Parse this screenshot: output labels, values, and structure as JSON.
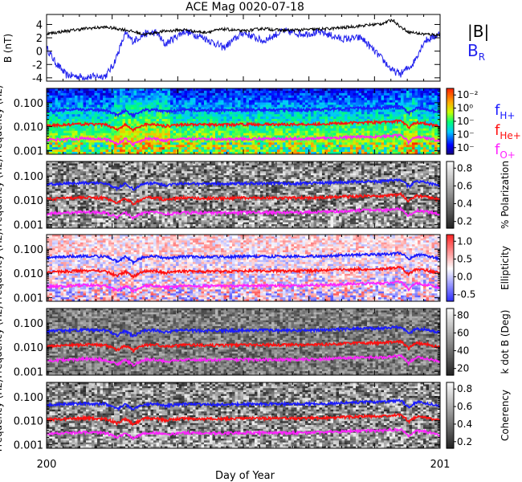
{
  "title": "ACE Mag 0020-07-18",
  "xaxis": {
    "label": "Day of Year",
    "start": 200,
    "end": 201,
    "tick_labels": [
      "200",
      "201"
    ]
  },
  "colors": {
    "total": "#000000",
    "br": "#2222ee",
    "fH": "#1a1aff",
    "fHe": "#ff1010",
    "fO": "#ff22ff"
  },
  "chart_data": [
    {
      "type": "line",
      "ylabel": "B (nT)",
      "ylim": [
        -4.5,
        5.5
      ],
      "yticks": [
        4,
        2,
        0,
        -2,
        -4
      ],
      "series": [
        {
          "name": "|B|",
          "color": "#000000",
          "x": [
            200.0,
            200.05,
            200.1,
            200.15,
            200.2,
            200.25,
            200.3,
            200.35,
            200.4,
            200.45,
            200.5,
            200.55,
            200.6,
            200.65,
            200.7,
            200.75,
            200.8,
            200.85,
            200.88,
            200.9,
            200.92,
            200.95,
            201.0
          ],
          "values": [
            2.6,
            3.0,
            3.4,
            3.6,
            3.2,
            2.5,
            3.0,
            3.2,
            2.8,
            3.3,
            3.0,
            3.4,
            3.1,
            3.2,
            3.3,
            3.5,
            3.8,
            4.1,
            4.7,
            3.6,
            2.9,
            2.6,
            2.4
          ]
        },
        {
          "name": "B_R",
          "color": "#2222ee",
          "x": [
            200.0,
            200.02,
            200.05,
            200.1,
            200.15,
            200.17,
            200.2,
            200.22,
            200.25,
            200.28,
            200.3,
            200.35,
            200.4,
            200.45,
            200.5,
            200.55,
            200.6,
            200.65,
            200.7,
            200.75,
            200.8,
            200.85,
            200.88,
            200.9,
            200.93,
            200.96,
            201.0
          ],
          "values": [
            0.5,
            -1.5,
            -3.6,
            -3.9,
            -3.7,
            -2.0,
            2.6,
            1.5,
            2.6,
            2.8,
            1.0,
            3.0,
            2.0,
            0.5,
            2.8,
            1.5,
            3.0,
            2.6,
            2.8,
            1.8,
            2.0,
            -1.0,
            -3.0,
            -3.4,
            -2.0,
            1.5,
            2.6
          ]
        }
      ]
    },
    {
      "type": "heatmap",
      "ylabel": "Frequency (Hz)",
      "yscale": "log",
      "ylim": [
        0.0007,
        0.4
      ],
      "ytick_labels": [
        "0.100",
        "0.010",
        "0.001"
      ],
      "colorbar": {
        "label": "",
        "tick_labels": [
          "10⁻²",
          "10⁰",
          "10⁻",
          "10⁻",
          "10⁻"
        ]
      }
    },
    {
      "type": "heatmap",
      "ylabel": "Frequency (Hz)",
      "yscale": "log",
      "ytick_labels": [
        "0.100",
        "0.010",
        "0.001"
      ],
      "colorbar": {
        "label": "% Polarization",
        "tick_labels": [
          "0.8",
          "0.6",
          "0.4",
          "0.2"
        ]
      }
    },
    {
      "type": "heatmap",
      "ylabel": "Frequency (Hz)",
      "yscale": "log",
      "ytick_labels": [
        "0.100",
        "0.010",
        "0.001"
      ],
      "colorbar": {
        "label": "Ellipticity",
        "tick_labels": [
          "1.0",
          "0.5",
          "0.0",
          "-0.5"
        ]
      }
    },
    {
      "type": "heatmap",
      "ylabel": "Frequency (Hz)",
      "yscale": "log",
      "ytick_labels": [
        "0.100",
        "0.010",
        "0.001"
      ],
      "colorbar": {
        "label": "k dot B (Deg)",
        "tick_labels": [
          "80",
          "60",
          "40",
          "20"
        ]
      }
    },
    {
      "type": "heatmap",
      "ylabel": "Frequency (Hz)",
      "yscale": "log",
      "ytick_labels": [
        "0.100",
        "0.010",
        "0.001"
      ],
      "colorbar": {
        "label": "Coherency",
        "tick_labels": [
          "0.8",
          "0.6",
          "0.4",
          "0.2"
        ]
      }
    }
  ],
  "gyro_lines": {
    "x": [
      200.0,
      200.05,
      200.1,
      200.15,
      200.18,
      200.2,
      200.22,
      200.25,
      200.28,
      200.3,
      200.35,
      200.4,
      200.45,
      200.5,
      200.55,
      200.6,
      200.65,
      200.7,
      200.75,
      200.8,
      200.85,
      200.9,
      200.92,
      200.94,
      200.96,
      201.0
    ],
    "fH_hz": [
      0.045,
      0.05,
      0.052,
      0.05,
      0.03,
      0.048,
      0.028,
      0.05,
      0.05,
      0.042,
      0.05,
      0.048,
      0.048,
      0.05,
      0.05,
      0.05,
      0.05,
      0.052,
      0.055,
      0.06,
      0.06,
      0.07,
      0.035,
      0.06,
      0.055,
      0.04
    ],
    "fHe_hz": [
      0.011,
      0.012,
      0.013,
      0.012,
      0.0075,
      0.012,
      0.007,
      0.0125,
      0.0125,
      0.0105,
      0.0125,
      0.012,
      0.012,
      0.0125,
      0.0125,
      0.0125,
      0.0125,
      0.013,
      0.014,
      0.015,
      0.015,
      0.0175,
      0.009,
      0.015,
      0.014,
      0.01
    ],
    "fO_hz": [
      0.0028,
      0.003,
      0.0033,
      0.003,
      0.0019,
      0.003,
      0.0018,
      0.0031,
      0.0031,
      0.0026,
      0.0031,
      0.003,
      0.003,
      0.0031,
      0.0031,
      0.0031,
      0.0031,
      0.0033,
      0.0035,
      0.0038,
      0.0038,
      0.0044,
      0.0022,
      0.0038,
      0.0035,
      0.0025
    ]
  },
  "legend_top": {
    "total": "|B|",
    "br_main": "B",
    "br_sub": "R"
  },
  "legend_gyro": [
    {
      "main": "f",
      "sub": "H+",
      "color": "#1a1aff"
    },
    {
      "main": "f",
      "sub": "He+",
      "color": "#ff1010"
    },
    {
      "main": "f",
      "sub": "O+",
      "color": "#ff22ff"
    }
  ]
}
